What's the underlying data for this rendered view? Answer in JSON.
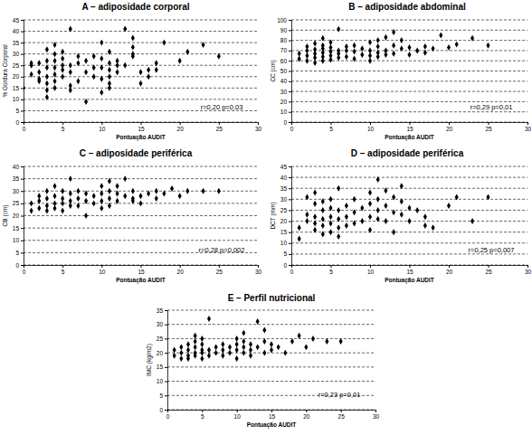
{
  "chart_data": [
    {
      "type": "scatter",
      "title": "A – adiposidade corporal",
      "x_label": "Pontuação AUDIT",
      "y_label": "% Gordura Corporal",
      "annotation": "r=0,20 p=0,03",
      "color": "#000000",
      "marker": "diamond",
      "grid": true,
      "xlim": [
        0,
        30
      ],
      "xticks": [
        0,
        5,
        10,
        15,
        20,
        25,
        30
      ],
      "ylim": [
        0,
        45
      ],
      "yticks": [
        0,
        5,
        10,
        15,
        20,
        25,
        30,
        35,
        40,
        45
      ],
      "x": [
        0,
        1,
        1,
        1,
        2,
        2,
        2,
        2,
        3,
        3,
        3,
        3,
        3,
        3,
        3,
        4,
        4,
        4,
        4,
        4,
        4,
        4,
        5,
        5,
        5,
        5,
        5,
        6,
        6,
        6,
        6,
        6,
        7,
        7,
        7,
        8,
        8,
        8,
        9,
        9,
        9,
        10,
        10,
        10,
        10,
        10,
        11,
        11,
        11,
        11,
        11,
        11,
        12,
        12,
        13,
        13,
        14,
        14,
        14,
        15,
        15,
        16,
        16,
        17,
        17,
        18,
        20,
        21,
        23,
        25,
        14,
        12
      ],
      "values": [
        15,
        26,
        21,
        25,
        18,
        22,
        26,
        19,
        11,
        14,
        17,
        20,
        24,
        27,
        32,
        15,
        18,
        21,
        24,
        27,
        30,
        34,
        20,
        23,
        25,
        28,
        31,
        14,
        16,
        22,
        25,
        41,
        18,
        26,
        29,
        9,
        22,
        27,
        20,
        24,
        29,
        13,
        19,
        24,
        28,
        35,
        15,
        17,
        20,
        23,
        26,
        31,
        22,
        27,
        25,
        41,
        30,
        37,
        33,
        17,
        22,
        23,
        20,
        23,
        26,
        35,
        27,
        31,
        34,
        29,
        29,
        25
      ]
    },
    {
      "type": "scatter",
      "title": "B – adiposidade abdominal",
      "x_label": "Pontuação AUDIT",
      "y_label": "CC (cm)",
      "annotation": "r=0,29 p=0,01",
      "color": "#000000",
      "marker": "diamond",
      "grid": true,
      "xlim": [
        0,
        30
      ],
      "xticks": [
        0,
        5,
        10,
        15,
        20,
        25,
        30
      ],
      "ylim": [
        0,
        100
      ],
      "yticks": [
        0,
        10,
        20,
        30,
        40,
        50,
        60,
        70,
        80,
        90,
        100
      ],
      "x": [
        1,
        1,
        2,
        2,
        2,
        2,
        3,
        3,
        3,
        3,
        3,
        4,
        4,
        4,
        4,
        4,
        4,
        5,
        5,
        5,
        5,
        5,
        6,
        6,
        6,
        6,
        7,
        7,
        7,
        8,
        8,
        8,
        9,
        9,
        10,
        10,
        10,
        10,
        11,
        11,
        11,
        11,
        12,
        12,
        13,
        13,
        14,
        14,
        15,
        15,
        16,
        17,
        17,
        18,
        19,
        20,
        21,
        23,
        25,
        12,
        13
      ],
      "values": [
        62,
        67,
        60,
        65,
        70,
        74,
        58,
        63,
        67,
        71,
        77,
        60,
        64,
        68,
        72,
        75,
        82,
        61,
        65,
        69,
        73,
        78,
        63,
        67,
        70,
        91,
        64,
        70,
        74,
        62,
        69,
        75,
        66,
        72,
        60,
        65,
        70,
        78,
        64,
        68,
        74,
        80,
        70,
        83,
        67,
        75,
        72,
        80,
        66,
        73,
        70,
        68,
        74,
        72,
        85,
        73,
        76,
        82,
        75,
        66,
        88
      ]
    },
    {
      "type": "scatter",
      "title": "C – adiposidade periférica",
      "x_label": "Pontuação AUDIT",
      "y_label": "CB (cm)",
      "annotation": "r=0,28 p=0,002",
      "color": "#000000",
      "marker": "diamond",
      "grid": true,
      "xlim": [
        0,
        30
      ],
      "xticks": [
        0,
        5,
        10,
        15,
        20,
        25,
        30
      ],
      "ylim": [
        0,
        40
      ],
      "yticks": [
        0,
        5,
        10,
        15,
        20,
        25,
        30,
        35,
        40
      ],
      "x": [
        1,
        1,
        2,
        2,
        2,
        3,
        3,
        3,
        3,
        4,
        4,
        4,
        4,
        5,
        5,
        5,
        5,
        6,
        6,
        6,
        6,
        7,
        7,
        7,
        8,
        8,
        8,
        9,
        9,
        10,
        10,
        10,
        10,
        11,
        11,
        11,
        11,
        12,
        12,
        13,
        13,
        14,
        14,
        15,
        15,
        16,
        17,
        17,
        18,
        19,
        20,
        21,
        23,
        25,
        12,
        14
      ],
      "values": [
        22,
        25,
        23,
        26,
        28,
        22,
        24,
        27,
        30,
        23,
        25,
        28,
        32,
        22,
        25,
        27,
        30,
        24,
        26,
        29,
        35,
        24,
        27,
        30,
        20,
        26,
        29,
        25,
        28,
        23,
        26,
        29,
        32,
        24,
        27,
        30,
        34,
        26,
        29,
        28,
        35,
        26,
        30,
        25,
        28,
        29,
        27,
        30,
        29,
        31,
        28,
        30,
        30,
        30,
        32,
        27
      ]
    },
    {
      "type": "scatter",
      "title": "D – adiposidade periférica",
      "x_label": "Pontuação AUDIT",
      "y_label": "DCT (mm)",
      "annotation": "r=0,25 p=0,007",
      "color": "#000000",
      "marker": "diamond",
      "grid": true,
      "xlim": [
        0,
        30
      ],
      "xticks": [
        0,
        5,
        10,
        15,
        20,
        25,
        30
      ],
      "ylim": [
        0,
        45
      ],
      "yticks": [
        0,
        5,
        10,
        15,
        20,
        25,
        30,
        35,
        40,
        45
      ],
      "x": [
        1,
        1,
        2,
        2,
        2,
        3,
        3,
        3,
        3,
        3,
        4,
        4,
        4,
        4,
        4,
        5,
        5,
        5,
        5,
        5,
        6,
        6,
        6,
        6,
        6,
        7,
        7,
        7,
        8,
        8,
        8,
        9,
        9,
        10,
        10,
        10,
        10,
        11,
        11,
        11,
        11,
        12,
        12,
        12,
        13,
        13,
        14,
        14,
        15,
        15,
        16,
        17,
        17,
        18,
        20,
        21,
        23,
        25,
        13,
        14
      ],
      "values": [
        12,
        17,
        20,
        23,
        31,
        16,
        19,
        22,
        28,
        33,
        14,
        18,
        21,
        25,
        29,
        15,
        19,
        22,
        26,
        30,
        13,
        17,
        21,
        25,
        35,
        18,
        22,
        27,
        19,
        24,
        30,
        20,
        26,
        16,
        22,
        28,
        33,
        21,
        25,
        30,
        39,
        20,
        27,
        34,
        15,
        24,
        23,
        29,
        20,
        26,
        25,
        22,
        18,
        17,
        27,
        31,
        20,
        31,
        31,
        36
      ]
    },
    {
      "type": "scatter",
      "title": "E – Perfil nutricional",
      "x_label": "Pontuação AUDIT",
      "y_label": "IMC (kg/m2)",
      "annotation": "r=0,23 p=0,01",
      "color": "#000000",
      "marker": "diamond",
      "grid": true,
      "xlim": [
        0,
        30
      ],
      "xticks": [
        0,
        5,
        10,
        15,
        20,
        25,
        30
      ],
      "ylim": [
        0,
        35
      ],
      "yticks": [
        0,
        5,
        10,
        15,
        20,
        25,
        30,
        35
      ],
      "x": [
        1,
        1,
        2,
        2,
        2,
        3,
        3,
        3,
        3,
        4,
        4,
        4,
        4,
        4,
        5,
        5,
        5,
        5,
        5,
        6,
        6,
        6,
        7,
        7,
        8,
        8,
        8,
        9,
        9,
        10,
        10,
        10,
        10,
        11,
        11,
        11,
        11,
        12,
        12,
        13,
        13,
        14,
        14,
        15,
        15,
        16,
        17,
        18,
        19,
        20,
        21,
        23,
        25,
        12,
        14
      ],
      "values": [
        19,
        21,
        18,
        20,
        22,
        18,
        19,
        21,
        23,
        19,
        20,
        22,
        24,
        26,
        18,
        20,
        21,
        23,
        25,
        19,
        21,
        32,
        20,
        22,
        19,
        21,
        23,
        20,
        22,
        18,
        21,
        23,
        25,
        20,
        22,
        24,
        27,
        21,
        23,
        22,
        31,
        20,
        24,
        21,
        23,
        22,
        20,
        24,
        26,
        22,
        25,
        24,
        24,
        19,
        28
      ]
    }
  ]
}
